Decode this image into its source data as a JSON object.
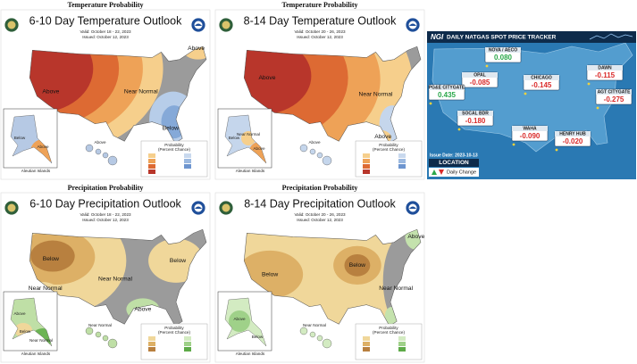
{
  "panels": [
    {
      "section_label": "Temperature Probability",
      "title": "6-10 Day Temperature Outlook",
      "valid": "Valid: October 18 - 22, 2023",
      "issued": "Issued: October 12, 2023",
      "region_labels": [
        "Above",
        "Near Normal",
        "Below",
        "Above"
      ],
      "alaska_labels": [
        "Below",
        "Above"
      ],
      "hawaii_label": "Above",
      "legend": {
        "title": "Probability",
        "subtitle": "(Percent Chance)"
      },
      "aleutian": "Aleutian Islands"
    },
    {
      "section_label": "Temperature Probability",
      "title": "8-14 Day Temperature Outlook",
      "valid": "Valid: October 20 - 26, 2023",
      "issued": "Issued: October 12, 2023",
      "region_labels": [
        "Above",
        "Near Normal",
        "Above"
      ],
      "alaska_labels": [
        "Below",
        "Near Normal",
        "Above"
      ],
      "hawaii_label": "Above",
      "legend": {
        "title": "Probability",
        "subtitle": "(Percent Chance)"
      },
      "aleutian": "Aleutian Islands"
    },
    {
      "section_label": "Precipitation Probability",
      "title": "6-10 Day Precipitation Outlook",
      "valid": "Valid: October 18 - 22, 2023",
      "issued": "Issued: October 12, 2023",
      "region_labels": [
        "Below",
        "Near Normal",
        "Below",
        "Near Normal",
        "Above"
      ],
      "alaska_labels": [
        "Above",
        "Below",
        "Near Normal"
      ],
      "hawaii_label": "Near Normal",
      "legend": {
        "title": "Probability",
        "subtitle": "(Percent Chance)"
      },
      "aleutian": "Aleutian Islands"
    },
    {
      "section_label": "Precipitation Probability",
      "title": "8-14 Day Precipitation Outlook",
      "valid": "Valid: October 20 - 26, 2023",
      "issued": "Issued: October 12, 2023",
      "region_labels": [
        "Below",
        "Below",
        "Near Normal",
        "Above"
      ],
      "alaska_labels": [
        "Above",
        "Below"
      ],
      "hawaii_label": "Near Normal",
      "legend": {
        "title": "Probability",
        "subtitle": "(Percent Chance)"
      },
      "aleutian": "Aleutian Islands"
    }
  ],
  "tracker": {
    "brand": "NGI",
    "title": "DAILY NATGAS SPOT PRICE TRACKER",
    "hubs": [
      {
        "name": "NOVA / AECO",
        "value": "0.080"
      },
      {
        "name": "OPAL",
        "value": "-0.085"
      },
      {
        "name": "CHICAGO",
        "value": "-0.145"
      },
      {
        "name": "DAWN",
        "value": "-0.115"
      },
      {
        "name": "PG&E CITYGATE",
        "value": "0.435"
      },
      {
        "name": "AGT CITYGATE",
        "value": "-0.275"
      },
      {
        "name": "SOCAL BDR",
        "value": "-0.180"
      },
      {
        "name": "WAHA",
        "value": "-0.090"
      },
      {
        "name": "HENRY HUB",
        "value": "-0.020"
      }
    ],
    "issue_date": "Issue Date: 2023-10-13",
    "location": "LOCATION",
    "daily_change": "Daily Change"
  }
}
